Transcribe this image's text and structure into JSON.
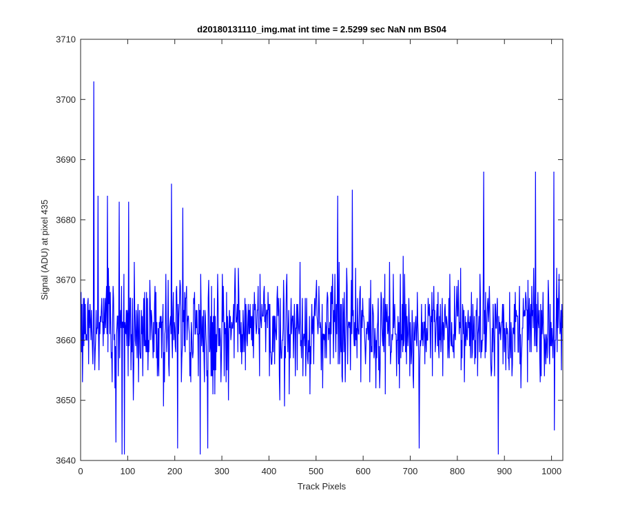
{
  "chart_data": {
    "type": "line",
    "title": "d20180131110_img.mat int time = 2.5299 sec  NaN nm BS04",
    "xlabel": "Track Pixels",
    "ylabel": "Signal (ADU) at pixel 435",
    "xlim": [
      0,
      1024
    ],
    "ylim": [
      3640,
      3710
    ],
    "xticks": [
      0,
      100,
      200,
      300,
      400,
      500,
      600,
      700,
      800,
      900,
      1000
    ],
    "yticks": [
      3640,
      3650,
      3660,
      3670,
      3680,
      3690,
      3700,
      3710
    ],
    "grid": false,
    "series": [
      {
        "color": "#0000ff",
        "x_start": 1,
        "x_step": 1,
        "approx_mean": 3662,
        "notable_points": [
          {
            "x": 28,
            "y": 3703
          },
          {
            "x": 37,
            "y": 3684
          },
          {
            "x": 57,
            "y": 3684
          },
          {
            "x": 75,
            "y": 3643
          },
          {
            "x": 82,
            "y": 3683
          },
          {
            "x": 88,
            "y": 3641
          },
          {
            "x": 93,
            "y": 3641
          },
          {
            "x": 102,
            "y": 3683
          },
          {
            "x": 193,
            "y": 3686
          },
          {
            "x": 206,
            "y": 3642
          },
          {
            "x": 217,
            "y": 3682
          },
          {
            "x": 254,
            "y": 3641
          },
          {
            "x": 270,
            "y": 3642
          },
          {
            "x": 546,
            "y": 3684
          },
          {
            "x": 577,
            "y": 3685
          },
          {
            "x": 719,
            "y": 3642
          },
          {
            "x": 856,
            "y": 3688
          },
          {
            "x": 887,
            "y": 3641
          },
          {
            "x": 966,
            "y": 3688
          },
          {
            "x": 1005,
            "y": 3688
          },
          {
            "x": 1006,
            "y": 3645
          }
        ]
      }
    ]
  }
}
